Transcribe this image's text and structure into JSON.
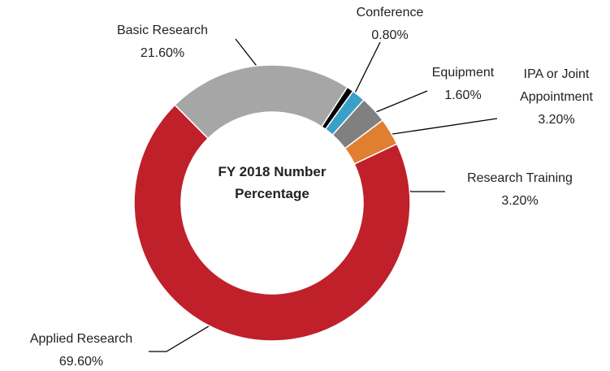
{
  "chart_data": {
    "type": "donut",
    "center_text": "FY 2018 Number Percentage",
    "categories": [
      "Conference",
      "Equipment",
      "IPA or Joint Appointment",
      "Research Training",
      "Applied Research",
      "Basic Research"
    ],
    "values": [
      0.8,
      1.6,
      3.2,
      3.2,
      69.6,
      21.6
    ],
    "value_labels": [
      "0.80%",
      "1.60%",
      "3.20%",
      "3.20%",
      "69.60%",
      "21.60%"
    ],
    "colors": [
      "#000000",
      "#3aa0c8",
      "#808080",
      "#e07f32",
      "#c0202a",
      "#a6a6a6"
    ]
  }
}
